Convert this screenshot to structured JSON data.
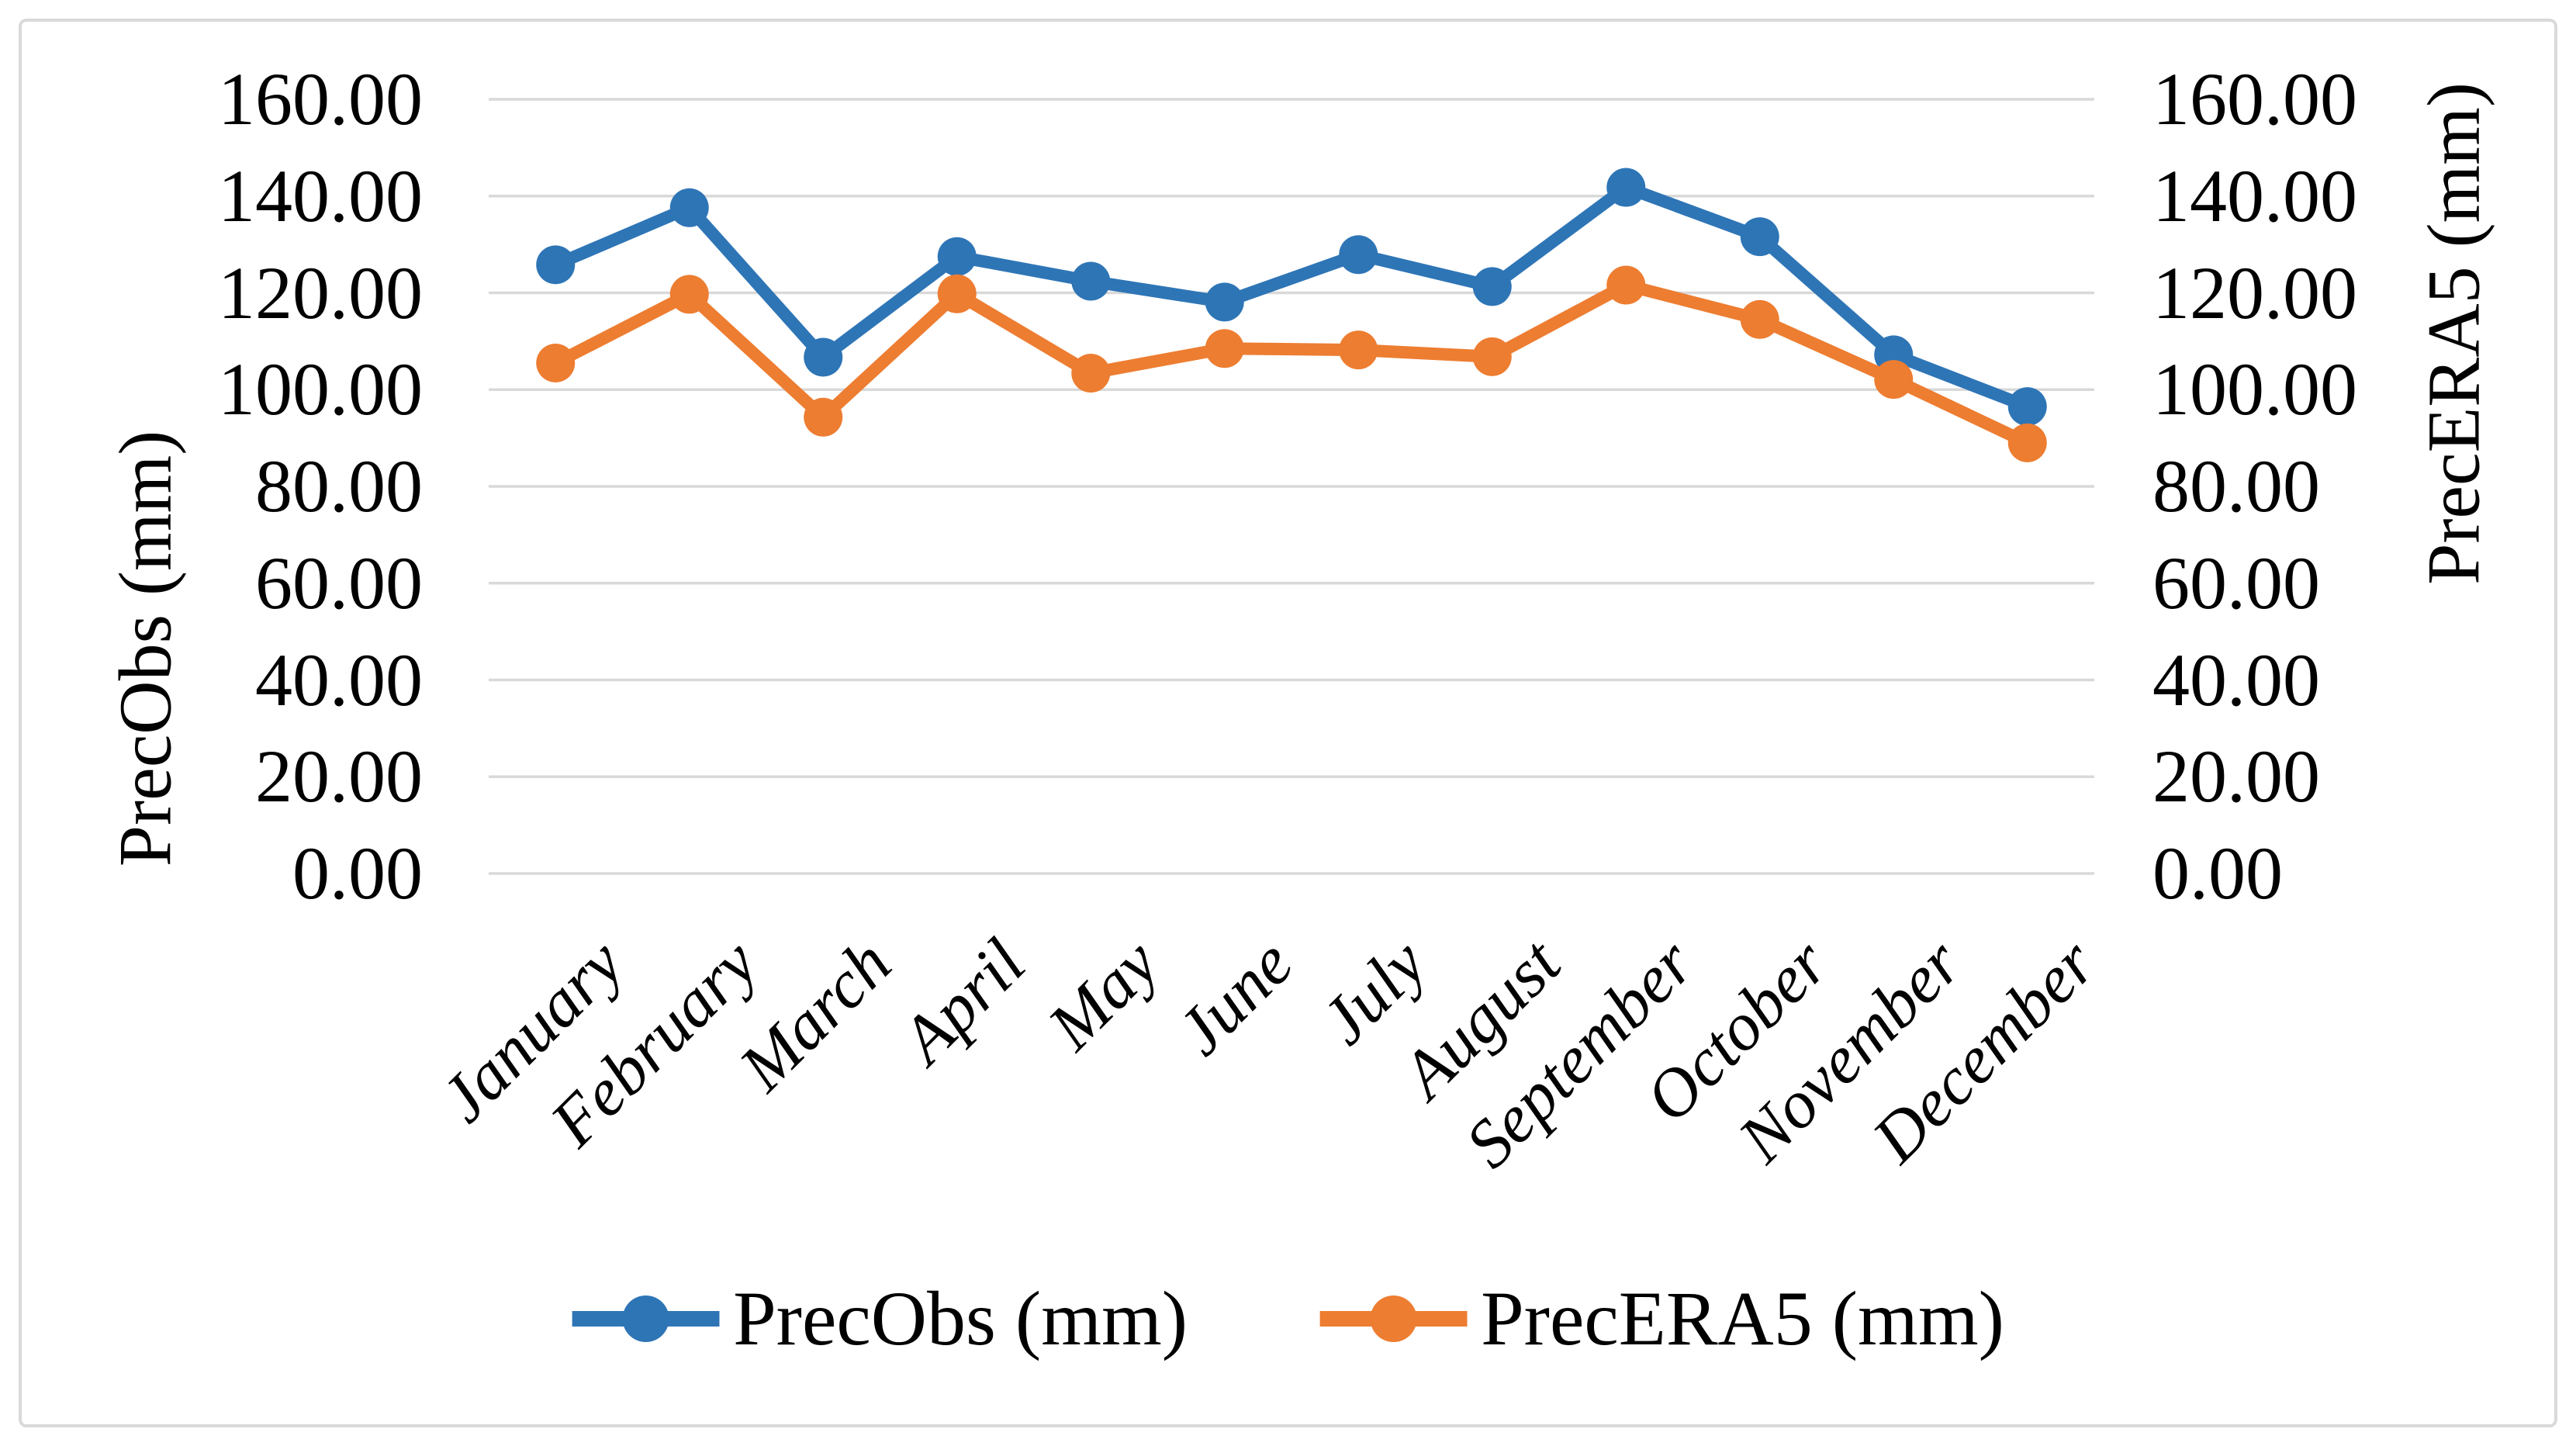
{
  "chart_data": {
    "type": "line",
    "categories": [
      "January",
      "February",
      "March",
      "April",
      "May",
      "June",
      "July",
      "August",
      "September",
      "October",
      "November",
      "December"
    ],
    "series": [
      {
        "name": "PrecObs (mm)",
        "color": "#2E75B6",
        "values": [
          125.8,
          137.6,
          106.7,
          127.5,
          122.4,
          118.1,
          127.9,
          121.3,
          141.8,
          131.6,
          107.2,
          96.5
        ]
      },
      {
        "name": "PrecERA5 (mm)",
        "color": "#ED7D31",
        "values": [
          105.5,
          119.7,
          94.3,
          119.8,
          103.4,
          108.5,
          108.2,
          106.8,
          121.6,
          114.5,
          102.1,
          89.0
        ]
      }
    ],
    "left_axis": {
      "title": "PrecObs (mm)",
      "min": 0,
      "max": 160,
      "step": 20,
      "tick_labels": [
        "160.00",
        "140.00",
        "120.00",
        "100.00",
        "80.00",
        "60.00",
        "40.00",
        "20.00",
        "0.00"
      ]
    },
    "right_axis": {
      "title": "PrecERA5 (mm)",
      "min": 0,
      "max": 160,
      "step": 20,
      "tick_labels": [
        "160.00",
        "140.00",
        "120.00",
        "100.00",
        "80.00",
        "60.00",
        "40.00",
        "20.00",
        "0.00"
      ]
    },
    "legend": [
      {
        "label": "PrecObs (mm)",
        "color": "#2E75B6"
      },
      {
        "label": "PrecERA5 (mm)",
        "color": "#ED7D31"
      }
    ],
    "legend_position": "bottom",
    "grid": true,
    "gridline_color": "#d9d9d9",
    "frame_border_color": "#d9d9d9"
  }
}
